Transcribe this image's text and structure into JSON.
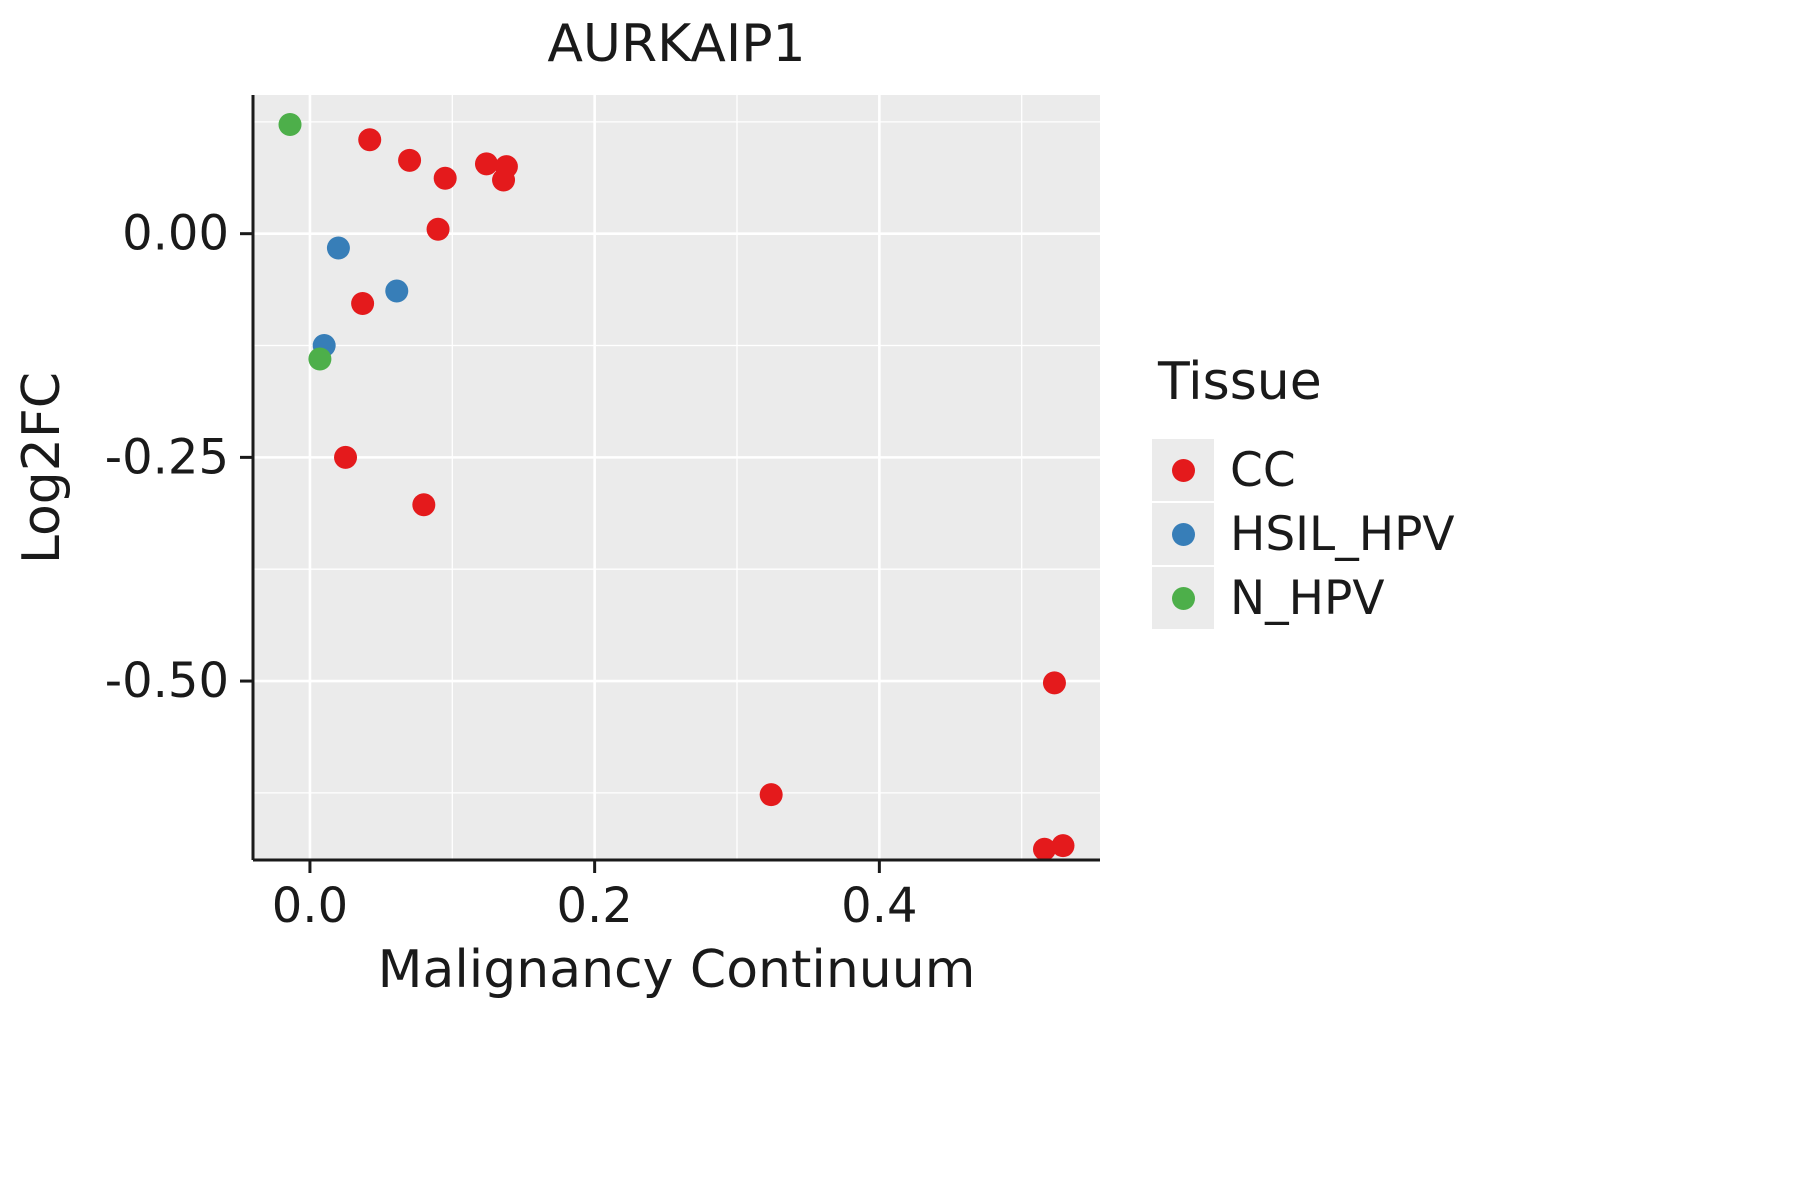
{
  "chart_data": {
    "type": "scatter",
    "title": "AURKAIP1",
    "xlabel": "Malignancy Continuum",
    "ylabel": "Log2FC",
    "xlim": [
      -0.04,
      0.555
    ],
    "ylim": [
      -0.7,
      0.155
    ],
    "grid": true,
    "panel_bg": "#EBEBEB",
    "grid_color": "#FFFFFF",
    "axis_color": "#1a1a1a",
    "legend_title": "Tissue",
    "legend_position": "right",
    "x_ticks": [
      {
        "value": 0.0,
        "label": "0.0"
      },
      {
        "value": 0.2,
        "label": "0.2"
      },
      {
        "value": 0.4,
        "label": "0.4"
      }
    ],
    "y_ticks": [
      {
        "value": 0.0,
        "label": "0.00"
      },
      {
        "value": -0.25,
        "label": "-0.25"
      },
      {
        "value": -0.5,
        "label": "-0.50"
      }
    ],
    "x_minor": [
      0.1,
      0.3,
      0.5
    ],
    "y_minor": [
      0.125,
      -0.125,
      -0.375,
      -0.625
    ],
    "series": [
      {
        "name": "CC",
        "color": "#E41A1C",
        "points": [
          [
            0.042,
            0.105
          ],
          [
            0.07,
            0.082
          ],
          [
            0.095,
            0.062
          ],
          [
            0.124,
            0.078
          ],
          [
            0.138,
            0.075
          ],
          [
            0.136,
            0.06
          ],
          [
            0.09,
            0.005
          ],
          [
            0.037,
            -0.078
          ],
          [
            0.025,
            -0.25
          ],
          [
            0.08,
            -0.303
          ],
          [
            0.523,
            -0.502
          ],
          [
            0.324,
            -0.627
          ],
          [
            0.516,
            -0.688
          ],
          [
            0.529,
            -0.684
          ]
        ]
      },
      {
        "name": "HSIL_HPV",
        "color": "#377EB8",
        "points": [
          [
            0.02,
            -0.016
          ],
          [
            0.061,
            -0.064
          ],
          [
            0.01,
            -0.125
          ]
        ]
      },
      {
        "name": "N_HPV",
        "color": "#4DAF4A",
        "points": [
          [
            -0.014,
            0.122
          ],
          [
            0.007,
            -0.14
          ]
        ]
      }
    ]
  }
}
